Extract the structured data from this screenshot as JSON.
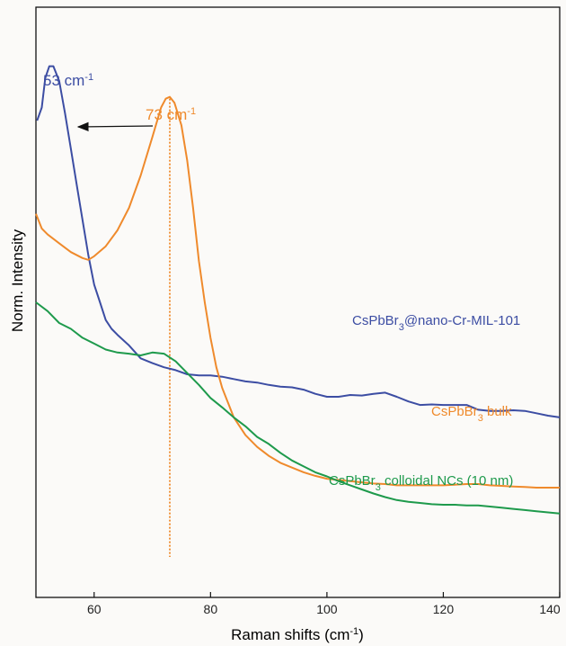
{
  "chart_data": {
    "type": "line",
    "xlabel": "Raman shifts (cm",
    "xlabel_sup": "-1",
    "xlabel_tail": ")",
    "ylabel": "Norm. Intensity",
    "xlim": [
      50,
      140
    ],
    "ylim": [
      0,
      1
    ],
    "x_ticks": [
      60,
      80,
      100,
      120,
      140
    ],
    "grid": false,
    "series": [
      {
        "name": "CsPbBr3@nano-Cr-MIL-101",
        "label_parts": [
          "CsPbBr",
          "3",
          "@nano-Cr-MIL-101"
        ],
        "color": "#3c4da3",
        "points": [
          [
            50.2,
            0.808
          ],
          [
            51,
            0.83
          ],
          [
            51.6,
            0.88
          ],
          [
            52.3,
            0.9
          ],
          [
            53,
            0.9
          ],
          [
            54,
            0.875
          ],
          [
            55,
            0.82
          ],
          [
            56,
            0.76
          ],
          [
            57,
            0.7
          ],
          [
            58,
            0.64
          ],
          [
            59,
            0.58
          ],
          [
            60,
            0.53
          ],
          [
            61,
            0.5
          ],
          [
            62,
            0.47
          ],
          [
            63,
            0.455
          ],
          [
            64,
            0.445
          ],
          [
            66,
            0.427
          ],
          [
            68,
            0.405
          ],
          [
            70,
            0.397
          ],
          [
            72,
            0.39
          ],
          [
            74,
            0.385
          ],
          [
            76,
            0.378
          ],
          [
            78,
            0.376
          ],
          [
            80,
            0.376
          ],
          [
            82,
            0.374
          ],
          [
            84,
            0.37
          ],
          [
            86,
            0.366
          ],
          [
            88,
            0.364
          ],
          [
            90,
            0.36
          ],
          [
            92,
            0.357
          ],
          [
            94,
            0.356
          ],
          [
            96,
            0.352
          ],
          [
            98,
            0.345
          ],
          [
            100,
            0.34
          ],
          [
            102,
            0.34
          ],
          [
            104,
            0.343
          ],
          [
            106,
            0.342
          ],
          [
            108,
            0.345
          ],
          [
            110,
            0.347
          ],
          [
            112,
            0.34
          ],
          [
            114,
            0.332
          ],
          [
            116,
            0.326
          ],
          [
            118,
            0.327
          ],
          [
            120,
            0.326
          ],
          [
            122,
            0.326
          ],
          [
            124,
            0.326
          ],
          [
            126,
            0.318
          ],
          [
            128,
            0.316
          ],
          [
            130,
            0.316
          ],
          [
            132,
            0.317
          ],
          [
            134,
            0.316
          ],
          [
            136,
            0.312
          ],
          [
            138,
            0.308
          ],
          [
            140,
            0.305
          ]
        ]
      },
      {
        "name": "CsPbBr3 bulk",
        "label_parts": [
          "CsPbBr",
          "3",
          " bulk"
        ],
        "color": "#ef8a2c",
        "points": [
          [
            50,
            0.65
          ],
          [
            51,
            0.625
          ],
          [
            52,
            0.615
          ],
          [
            54,
            0.6
          ],
          [
            56,
            0.585
          ],
          [
            58,
            0.575
          ],
          [
            59,
            0.572
          ],
          [
            60,
            0.578
          ],
          [
            62,
            0.595
          ],
          [
            64,
            0.622
          ],
          [
            66,
            0.66
          ],
          [
            68,
            0.715
          ],
          [
            70,
            0.78
          ],
          [
            71.5,
            0.83
          ],
          [
            72.3,
            0.845
          ],
          [
            73,
            0.848
          ],
          [
            73.8,
            0.838
          ],
          [
            75,
            0.8
          ],
          [
            76,
            0.74
          ],
          [
            77,
            0.66
          ],
          [
            78,
            0.57
          ],
          [
            79,
            0.5
          ],
          [
            80,
            0.44
          ],
          [
            81,
            0.39
          ],
          [
            82,
            0.355
          ],
          [
            84,
            0.305
          ],
          [
            86,
            0.275
          ],
          [
            88,
            0.255
          ],
          [
            90,
            0.24
          ],
          [
            92,
            0.228
          ],
          [
            94,
            0.22
          ],
          [
            96,
            0.212
          ],
          [
            98,
            0.206
          ],
          [
            100,
            0.201
          ],
          [
            102,
            0.199
          ],
          [
            104,
            0.197
          ],
          [
            106,
            0.195
          ],
          [
            108,
            0.193
          ],
          [
            110,
            0.192
          ],
          [
            112,
            0.19
          ],
          [
            114,
            0.19
          ],
          [
            116,
            0.19
          ],
          [
            118,
            0.19
          ],
          [
            120,
            0.19
          ],
          [
            122,
            0.191
          ],
          [
            124,
            0.192
          ],
          [
            126,
            0.192
          ],
          [
            128,
            0.19
          ],
          [
            130,
            0.189
          ],
          [
            132,
            0.188
          ],
          [
            134,
            0.187
          ],
          [
            136,
            0.186
          ],
          [
            138,
            0.186
          ],
          [
            140,
            0.186
          ]
        ]
      },
      {
        "name": "CsPbBr3 colloidal NCs (10 nm)",
        "label_parts": [
          "CsPbBr",
          "3",
          " colloidal NCs (10 nm)"
        ],
        "color": "#1e9a4c",
        "points": [
          [
            50,
            0.5
          ],
          [
            52,
            0.485
          ],
          [
            54,
            0.465
          ],
          [
            56,
            0.455
          ],
          [
            58,
            0.44
          ],
          [
            60,
            0.43
          ],
          [
            62,
            0.42
          ],
          [
            64,
            0.415
          ],
          [
            66,
            0.413
          ],
          [
            68,
            0.41
          ],
          [
            70,
            0.415
          ],
          [
            72,
            0.413
          ],
          [
            74,
            0.4
          ],
          [
            76,
            0.38
          ],
          [
            78,
            0.36
          ],
          [
            80,
            0.338
          ],
          [
            82,
            0.322
          ],
          [
            84,
            0.305
          ],
          [
            86,
            0.29
          ],
          [
            88,
            0.272
          ],
          [
            90,
            0.26
          ],
          [
            92,
            0.245
          ],
          [
            94,
            0.232
          ],
          [
            96,
            0.222
          ],
          [
            98,
            0.212
          ],
          [
            100,
            0.205
          ],
          [
            102,
            0.197
          ],
          [
            104,
            0.19
          ],
          [
            106,
            0.183
          ],
          [
            108,
            0.176
          ],
          [
            110,
            0.17
          ],
          [
            112,
            0.165
          ],
          [
            114,
            0.162
          ],
          [
            116,
            0.16
          ],
          [
            118,
            0.158
          ],
          [
            120,
            0.157
          ],
          [
            122,
            0.157
          ],
          [
            124,
            0.156
          ],
          [
            126,
            0.156
          ],
          [
            128,
            0.154
          ],
          [
            130,
            0.152
          ],
          [
            132,
            0.15
          ],
          [
            134,
            0.148
          ],
          [
            136,
            0.146
          ],
          [
            138,
            0.144
          ],
          [
            140,
            0.142
          ]
        ]
      }
    ],
    "annotations": [
      {
        "text": "53 cm",
        "sup": "-1",
        "x": 53,
        "color": "#3c4da3"
      },
      {
        "text": "73 cm",
        "sup": "-1",
        "x": 73,
        "color": "#ef8a2c"
      }
    ],
    "reference_line_x": 73
  }
}
